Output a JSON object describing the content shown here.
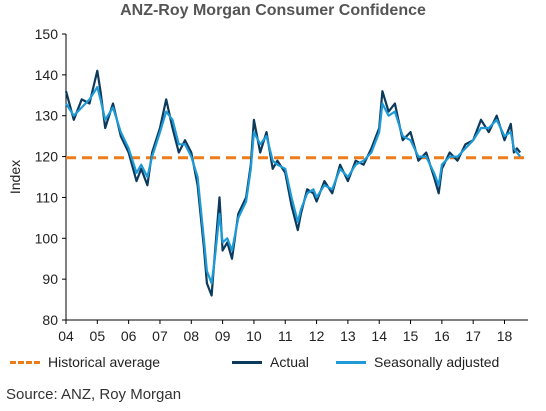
{
  "chart_data": {
    "type": "line",
    "title": "ANZ-Roy Morgan Consumer Confidence",
    "ylabel": "Index",
    "xlabel": "",
    "ylim": [
      80,
      150
    ],
    "yticks": [
      80,
      90,
      100,
      110,
      120,
      130,
      140,
      150
    ],
    "xlim": [
      2004.0,
      2018.75
    ],
    "xticks": [
      {
        "x": 2004,
        "label": "04"
      },
      {
        "x": 2005,
        "label": "05"
      },
      {
        "x": 2006,
        "label": "06"
      },
      {
        "x": 2007,
        "label": "07"
      },
      {
        "x": 2008,
        "label": "08"
      },
      {
        "x": 2009,
        "label": "09"
      },
      {
        "x": 2010,
        "label": "10"
      },
      {
        "x": 2011,
        "label": "11"
      },
      {
        "x": 2012,
        "label": "12"
      },
      {
        "x": 2013,
        "label": "13"
      },
      {
        "x": 2014,
        "label": "14"
      },
      {
        "x": 2015,
        "label": "15"
      },
      {
        "x": 2016,
        "label": "16"
      },
      {
        "x": 2017,
        "label": "17"
      },
      {
        "x": 2018,
        "label": "18"
      }
    ],
    "grid": false,
    "legend_position": "bottom",
    "series": [
      {
        "name": "Historical average",
        "style": "dashed",
        "color": "#ED7D1A",
        "x": [
          2004.0,
          2018.75
        ],
        "y": [
          119.7,
          119.7
        ]
      },
      {
        "name": "Actual",
        "style": "solid",
        "color": "#0B3A5C",
        "x": [
          2004.0,
          2004.25,
          2004.5,
          2004.75,
          2005.0,
          2005.1,
          2005.25,
          2005.5,
          2005.75,
          2006.0,
          2006.25,
          2006.4,
          2006.6,
          2006.75,
          2007.0,
          2007.2,
          2007.4,
          2007.6,
          2007.8,
          2008.0,
          2008.2,
          2008.4,
          2008.5,
          2008.65,
          2008.75,
          2008.9,
          2009.0,
          2009.15,
          2009.3,
          2009.5,
          2009.75,
          2009.9,
          2010.0,
          2010.2,
          2010.4,
          2010.6,
          2010.75,
          2011.0,
          2011.2,
          2011.4,
          2011.5,
          2011.7,
          2011.9,
          2012.0,
          2012.25,
          2012.5,
          2012.75,
          2013.0,
          2013.25,
          2013.5,
          2013.75,
          2014.0,
          2014.1,
          2014.3,
          2014.5,
          2014.75,
          2015.0,
          2015.25,
          2015.5,
          2015.75,
          2015.9,
          2016.0,
          2016.25,
          2016.5,
          2016.75,
          2017.0,
          2017.25,
          2017.5,
          2017.75,
          2018.0,
          2018.2,
          2018.3,
          2018.4,
          2018.5
        ],
        "y": [
          136,
          129,
          134,
          133,
          141,
          136,
          127,
          133,
          125,
          121,
          114,
          117,
          113,
          121,
          127,
          134,
          127,
          121,
          124,
          121,
          113,
          98,
          89,
          86,
          96,
          110,
          97,
          99,
          95,
          106,
          110,
          118,
          129,
          121,
          126,
          117,
          119,
          116,
          108,
          102,
          106,
          112,
          111,
          109,
          114,
          111,
          118,
          114,
          119,
          118,
          122,
          127,
          136,
          131,
          133,
          124,
          126,
          119,
          121,
          115,
          111,
          117,
          121,
          119,
          123,
          124,
          129,
          126,
          130,
          124,
          128,
          121,
          122,
          121
        ]
      },
      {
        "name": "Seasonally adjusted",
        "style": "solid",
        "color": "#1E9BD7",
        "x": [
          2004.0,
          2004.25,
          2004.5,
          2004.75,
          2005.0,
          2005.1,
          2005.25,
          2005.5,
          2005.75,
          2006.0,
          2006.25,
          2006.4,
          2006.6,
          2006.75,
          2007.0,
          2007.2,
          2007.4,
          2007.6,
          2007.8,
          2008.0,
          2008.2,
          2008.4,
          2008.5,
          2008.65,
          2008.75,
          2008.9,
          2009.0,
          2009.15,
          2009.3,
          2009.5,
          2009.75,
          2009.9,
          2010.0,
          2010.2,
          2010.4,
          2010.6,
          2010.75,
          2011.0,
          2011.2,
          2011.4,
          2011.5,
          2011.7,
          2011.9,
          2012.0,
          2012.25,
          2012.5,
          2012.75,
          2013.0,
          2013.25,
          2013.5,
          2013.75,
          2014.0,
          2014.1,
          2014.3,
          2014.5,
          2014.75,
          2015.0,
          2015.25,
          2015.5,
          2015.75,
          2015.9,
          2016.0,
          2016.25,
          2016.5,
          2016.75,
          2017.0,
          2017.25,
          2017.5,
          2017.75,
          2018.0,
          2018.2,
          2018.3,
          2018.4,
          2018.5
        ],
        "y": [
          133,
          130,
          132,
          134,
          137,
          134,
          129,
          132,
          126,
          122,
          116,
          118,
          115,
          120,
          126,
          131,
          129,
          123,
          123,
          120,
          115,
          100,
          92,
          89,
          95,
          106,
          99,
          100,
          97,
          105,
          109,
          117,
          126,
          123,
          125,
          119,
          118,
          117,
          110,
          104,
          107,
          111,
          112,
          110,
          113,
          112,
          117,
          115,
          118,
          119,
          121,
          126,
          133,
          130,
          131,
          125,
          124,
          120,
          120,
          116,
          113,
          118,
          120,
          120,
          122,
          124,
          127,
          127,
          129,
          125,
          126,
          122,
          121,
          120
        ]
      }
    ],
    "source": "Source: ANZ, Roy Morgan"
  }
}
